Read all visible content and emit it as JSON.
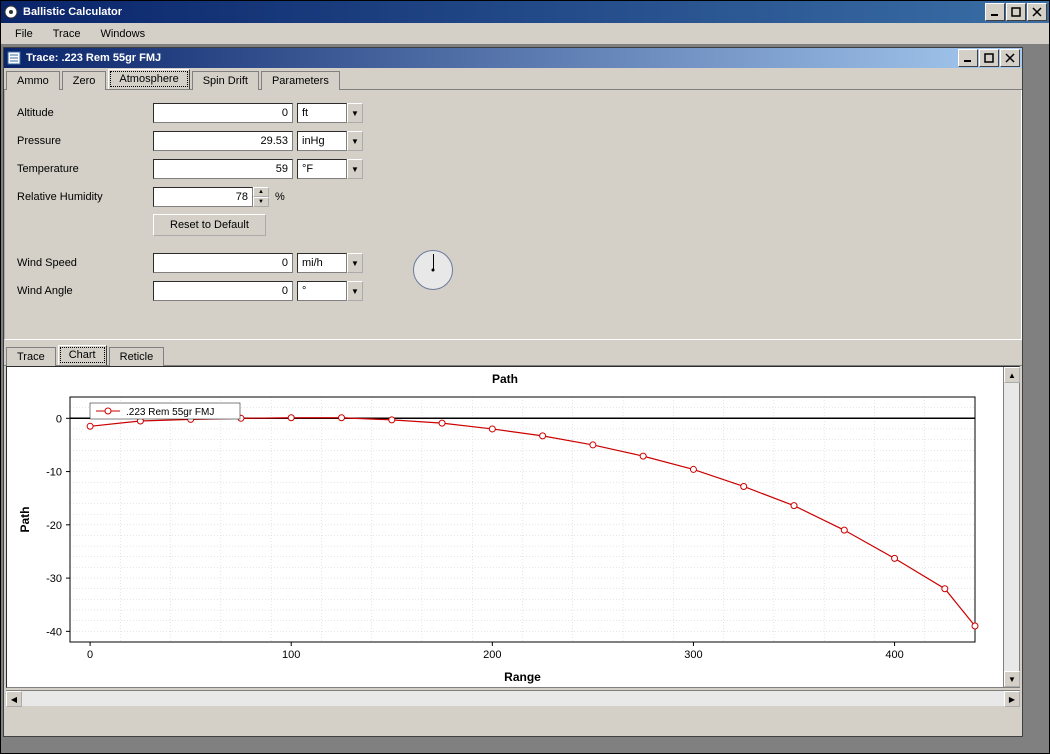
{
  "app": {
    "title": "Ballistic Calculator",
    "menu": {
      "file": "File",
      "trace": "Trace",
      "windows": "Windows"
    }
  },
  "trace_window": {
    "title": "Trace: .223 Rem 55gr FMJ",
    "tabs": {
      "ammo": "Ammo",
      "zero": "Zero",
      "atmosphere": "Atmosphere",
      "spindrift": "Spin Drift",
      "parameters": "Parameters"
    },
    "active_tab": "Atmosphere"
  },
  "atmosphere": {
    "altitude": {
      "label": "Altitude",
      "value": "0",
      "unit": "ft"
    },
    "pressure": {
      "label": "Pressure",
      "value": "29.53",
      "unit": "inHg"
    },
    "temperature": {
      "label": "Temperature",
      "value": "59",
      "unit": "°F"
    },
    "humidity": {
      "label": "Relative Humidity",
      "value": "78",
      "unit": "%"
    },
    "reset_label": "Reset to Default",
    "wind_speed": {
      "label": "Wind Speed",
      "value": "0",
      "unit": "mi/h"
    },
    "wind_angle": {
      "label": "Wind Angle",
      "value": "0",
      "unit": "°"
    }
  },
  "lower_tabs": {
    "trace": "Trace",
    "chart": "Chart",
    "reticle": "Reticle",
    "active": "Chart"
  },
  "chart": {
    "type": "line",
    "title": "Path",
    "xlabel": "Range",
    "ylabel": "Path",
    "legend_label": ".223 Rem 55gr FMJ",
    "series_color": "#cc0000",
    "marker": "circle",
    "background_color": "#ffffff",
    "grid_color": "#cccccc",
    "axis_color": "#000000",
    "title_fontsize": 12,
    "label_fontsize": 12,
    "tick_fontsize": 11,
    "xlim": [
      -10,
      440
    ],
    "ylim": [
      -42,
      4
    ],
    "xticks": [
      0,
      100,
      200,
      300,
      400
    ],
    "yticks": [
      -40,
      -30,
      -20,
      -10,
      0
    ],
    "x_minor_step": 25,
    "y_minor_step": 2,
    "x": [
      0,
      25,
      50,
      75,
      100,
      125,
      150,
      175,
      200,
      225,
      250,
      275,
      300,
      325,
      350,
      375,
      400,
      425,
      440
    ],
    "y": [
      -1.5,
      -0.5,
      -0.2,
      0.0,
      0.1,
      0.1,
      -0.3,
      -0.9,
      -2.0,
      -3.3,
      -5.0,
      -7.1,
      -9.6,
      -12.8,
      -16.4,
      -21.0,
      -26.3,
      -32.0,
      -39.0
    ]
  }
}
